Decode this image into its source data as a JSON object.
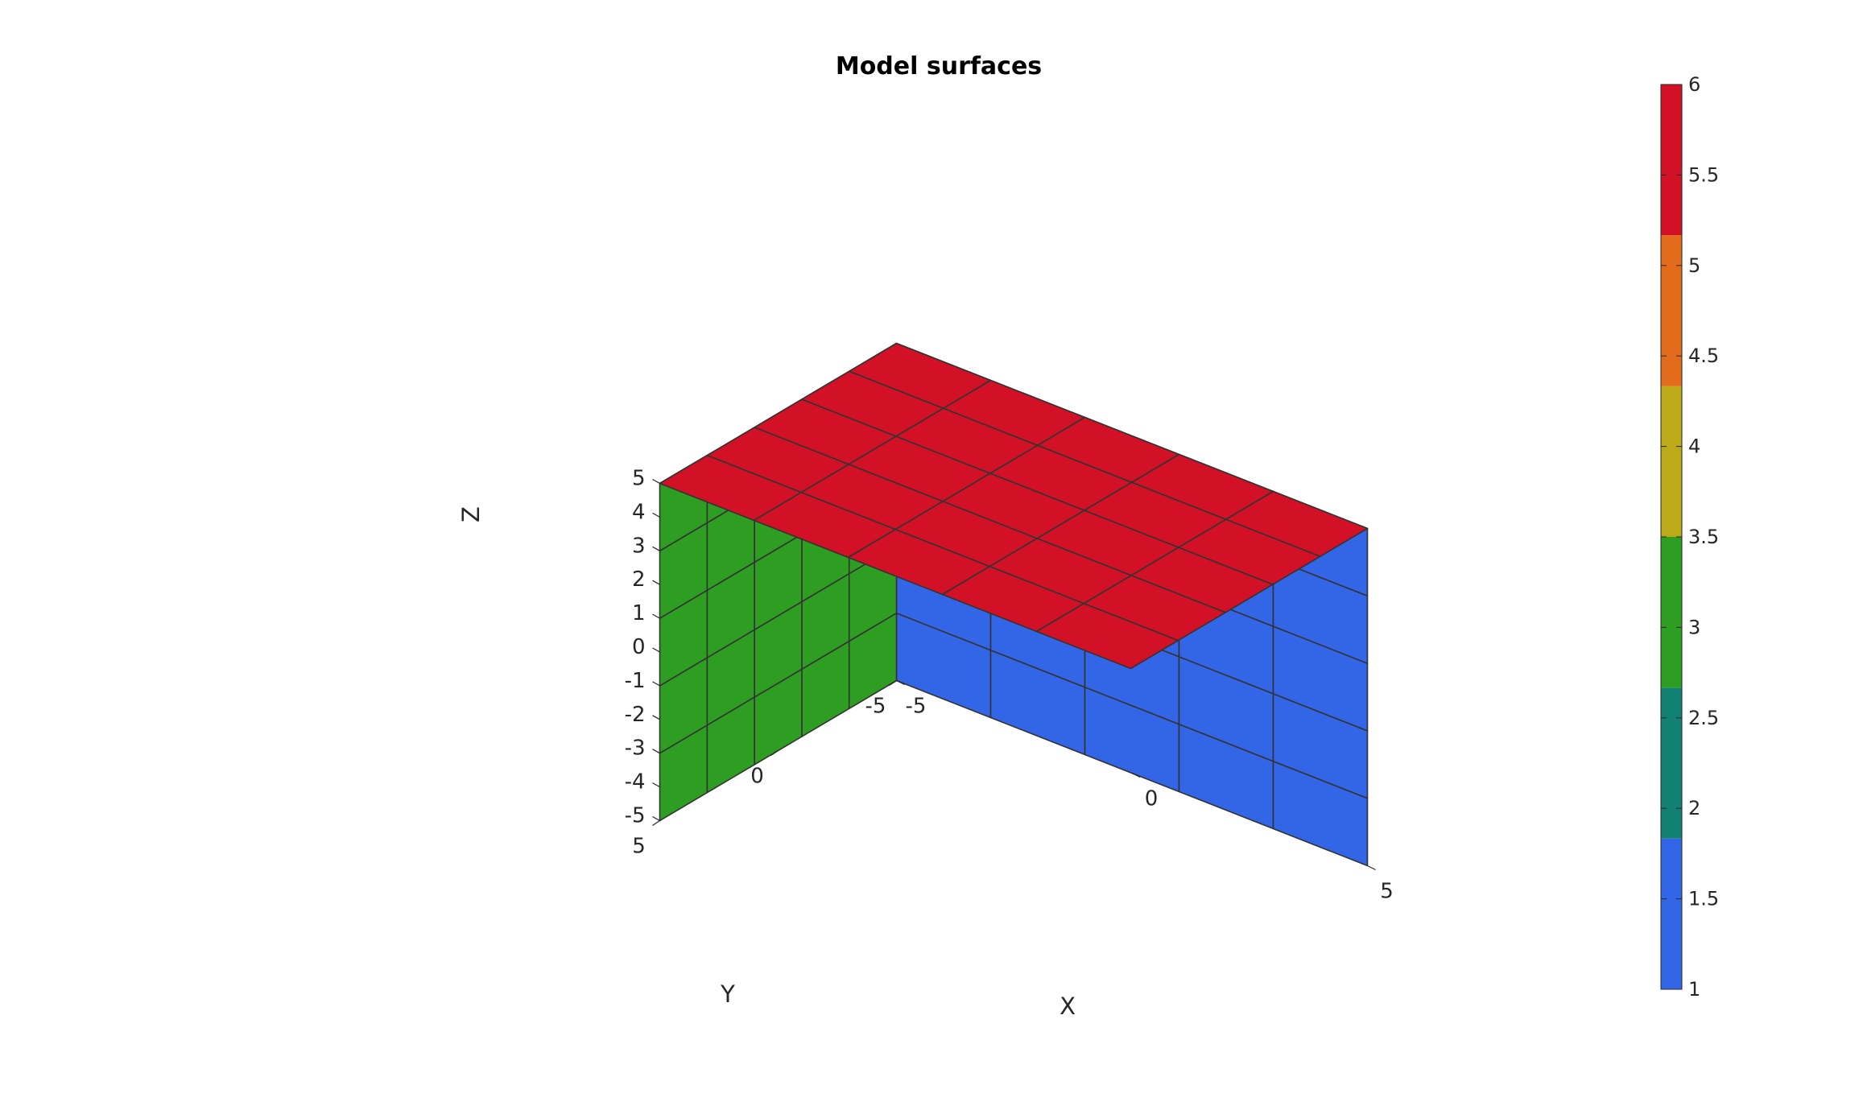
{
  "chart_data": {
    "type": "3d-surface",
    "title": "Model surfaces",
    "xlabel": "X",
    "ylabel": "Y",
    "zlabel": "Z",
    "xlim": [
      -5,
      5
    ],
    "ylim": [
      -5,
      5
    ],
    "zlim": [
      -5,
      5
    ],
    "x_ticks": [
      "-5",
      "0",
      "5"
    ],
    "y_ticks": [
      "-5",
      "0",
      "5"
    ],
    "z_ticks": [
      "-5",
      "-4",
      "-3",
      "-2",
      "-1",
      "0",
      "1",
      "2",
      "3",
      "4",
      "5"
    ],
    "grid_divisions": 5,
    "surfaces": [
      {
        "face": "y = -5",
        "value": 1,
        "color": "#3366e6"
      },
      {
        "face": "x = -5",
        "value": 3,
        "color": "#2e9e22"
      },
      {
        "face": "z = 5",
        "value": 6,
        "color": "#d21026"
      }
    ],
    "colorbar": {
      "range": [
        1,
        6
      ],
      "ticks": [
        "1",
        "1.5",
        "2",
        "2.5",
        "3",
        "3.5",
        "4",
        "4.5",
        "5",
        "5.5",
        "6"
      ],
      "bands": [
        {
          "from": 1,
          "to": 1.833,
          "color": "#3366e6"
        },
        {
          "from": 1.833,
          "to": 2.667,
          "color": "#128073"
        },
        {
          "from": 2.667,
          "to": 3.5,
          "color": "#2e9e22"
        },
        {
          "from": 3.5,
          "to": 4.333,
          "color": "#bcaa18"
        },
        {
          "from": 4.333,
          "to": 5.167,
          "color": "#e36b1c"
        },
        {
          "from": 5.167,
          "to": 6,
          "color": "#d21026"
        }
      ]
    },
    "edge_color": "#333333"
  }
}
